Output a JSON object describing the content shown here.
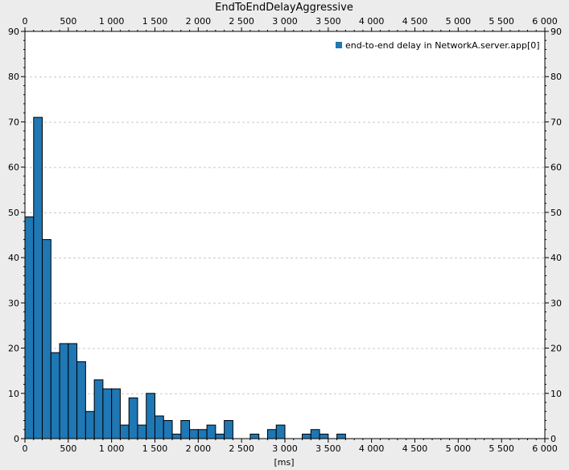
{
  "chart_data": {
    "type": "bar",
    "title": "EndToEndDelayAggressive",
    "xlabel": "[ms]",
    "ylabel": "",
    "xlim": [
      0,
      6000
    ],
    "ylim": [
      0,
      90
    ],
    "bin_width": 100,
    "x_ticks": [
      0,
      500,
      1000,
      1500,
      2000,
      2500,
      3000,
      3500,
      4000,
      4500,
      5000,
      5500,
      6000
    ],
    "x_tick_labels": [
      "0",
      "500",
      "1 000",
      "1 500",
      "2 000",
      "2 500",
      "3 000",
      "3 500",
      "4 000",
      "4 500",
      "5 000",
      "5 500",
      "6 000"
    ],
    "y_ticks": [
      0,
      10,
      20,
      30,
      40,
      50,
      60,
      70,
      80,
      90
    ],
    "y_tick_labels": [
      "0",
      "10",
      "20",
      "30",
      "40",
      "50",
      "60",
      "70",
      "80",
      "90"
    ],
    "grid": true,
    "legend_position": "top-right",
    "series": [
      {
        "name": "end-to-end delay in NetworkA.server.app[0]",
        "color": "#1f77b4",
        "x": [
          0,
          100,
          200,
          300,
          400,
          500,
          600,
          700,
          800,
          900,
          1000,
          1100,
          1200,
          1300,
          1400,
          1500,
          1600,
          1700,
          1800,
          1900,
          2000,
          2100,
          2200,
          2300,
          2600,
          2800,
          2900,
          3200,
          3300,
          3400,
          3600
        ],
        "values": [
          49,
          71,
          44,
          19,
          21,
          21,
          17,
          6,
          13,
          11,
          11,
          3,
          9,
          3,
          10,
          5,
          4,
          1,
          4,
          2,
          2,
          3,
          1,
          4,
          1,
          2,
          3,
          1,
          2,
          1,
          1
        ]
      }
    ]
  }
}
